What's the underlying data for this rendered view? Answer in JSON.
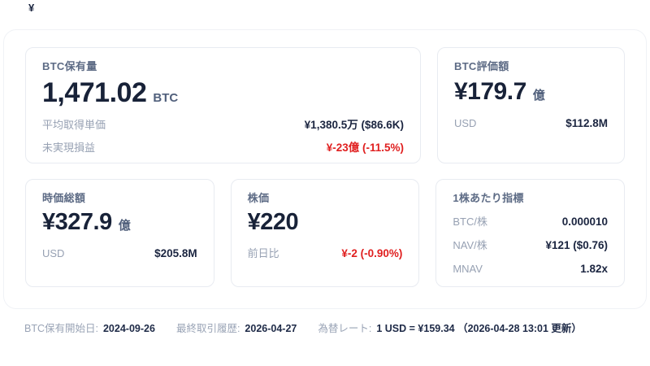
{
  "page": {
    "corner_symbol": "¥"
  },
  "colors": {
    "value_dark": "#182238",
    "title_slate": "#5d6b85",
    "label_gray": "#97a1b3",
    "negative_red": "#e02020",
    "card_border": "#e8ebf1"
  },
  "cards": {
    "btc_holdings": {
      "title": "BTC保有量",
      "value": "1,471.02",
      "unit": "BTC",
      "rows": [
        {
          "label": "平均取得単価",
          "value": "¥1,380.5万 ($86.6K)"
        },
        {
          "label": "未実現損益",
          "value": "¥-23億 (-11.5%)"
        }
      ]
    },
    "btc_valuation": {
      "title": "BTC評価額",
      "value": "¥179.7",
      "unit": "億",
      "rows": [
        {
          "label": "USD",
          "value": "$112.8M"
        }
      ]
    },
    "market_cap": {
      "title": "時価総額",
      "value": "¥327.9",
      "unit": "億",
      "rows": [
        {
          "label": "USD",
          "value": "$205.8M"
        }
      ]
    },
    "stock_price": {
      "title": "株価",
      "value": "¥220",
      "unit": "",
      "rows": [
        {
          "label": "前日比",
          "value": "¥-2 (-0.90%)"
        }
      ]
    },
    "per_share": {
      "title": "1株あたり指標",
      "rows": [
        {
          "label": "BTC/株",
          "value": "0.000010"
        },
        {
          "label": "NAV/株",
          "value": "¥121 ($0.76)"
        },
        {
          "label": "MNAV",
          "value": "1.82x"
        }
      ]
    }
  },
  "footer": {
    "items": [
      {
        "label": "BTC保有開始日:",
        "value": "2024-09-26"
      },
      {
        "label": "最終取引履歴:",
        "value": "2026-04-27"
      },
      {
        "label": "為替レート:",
        "value": "1 USD = ¥159.34 （2026-04-28 13:01 更新）"
      }
    ]
  }
}
